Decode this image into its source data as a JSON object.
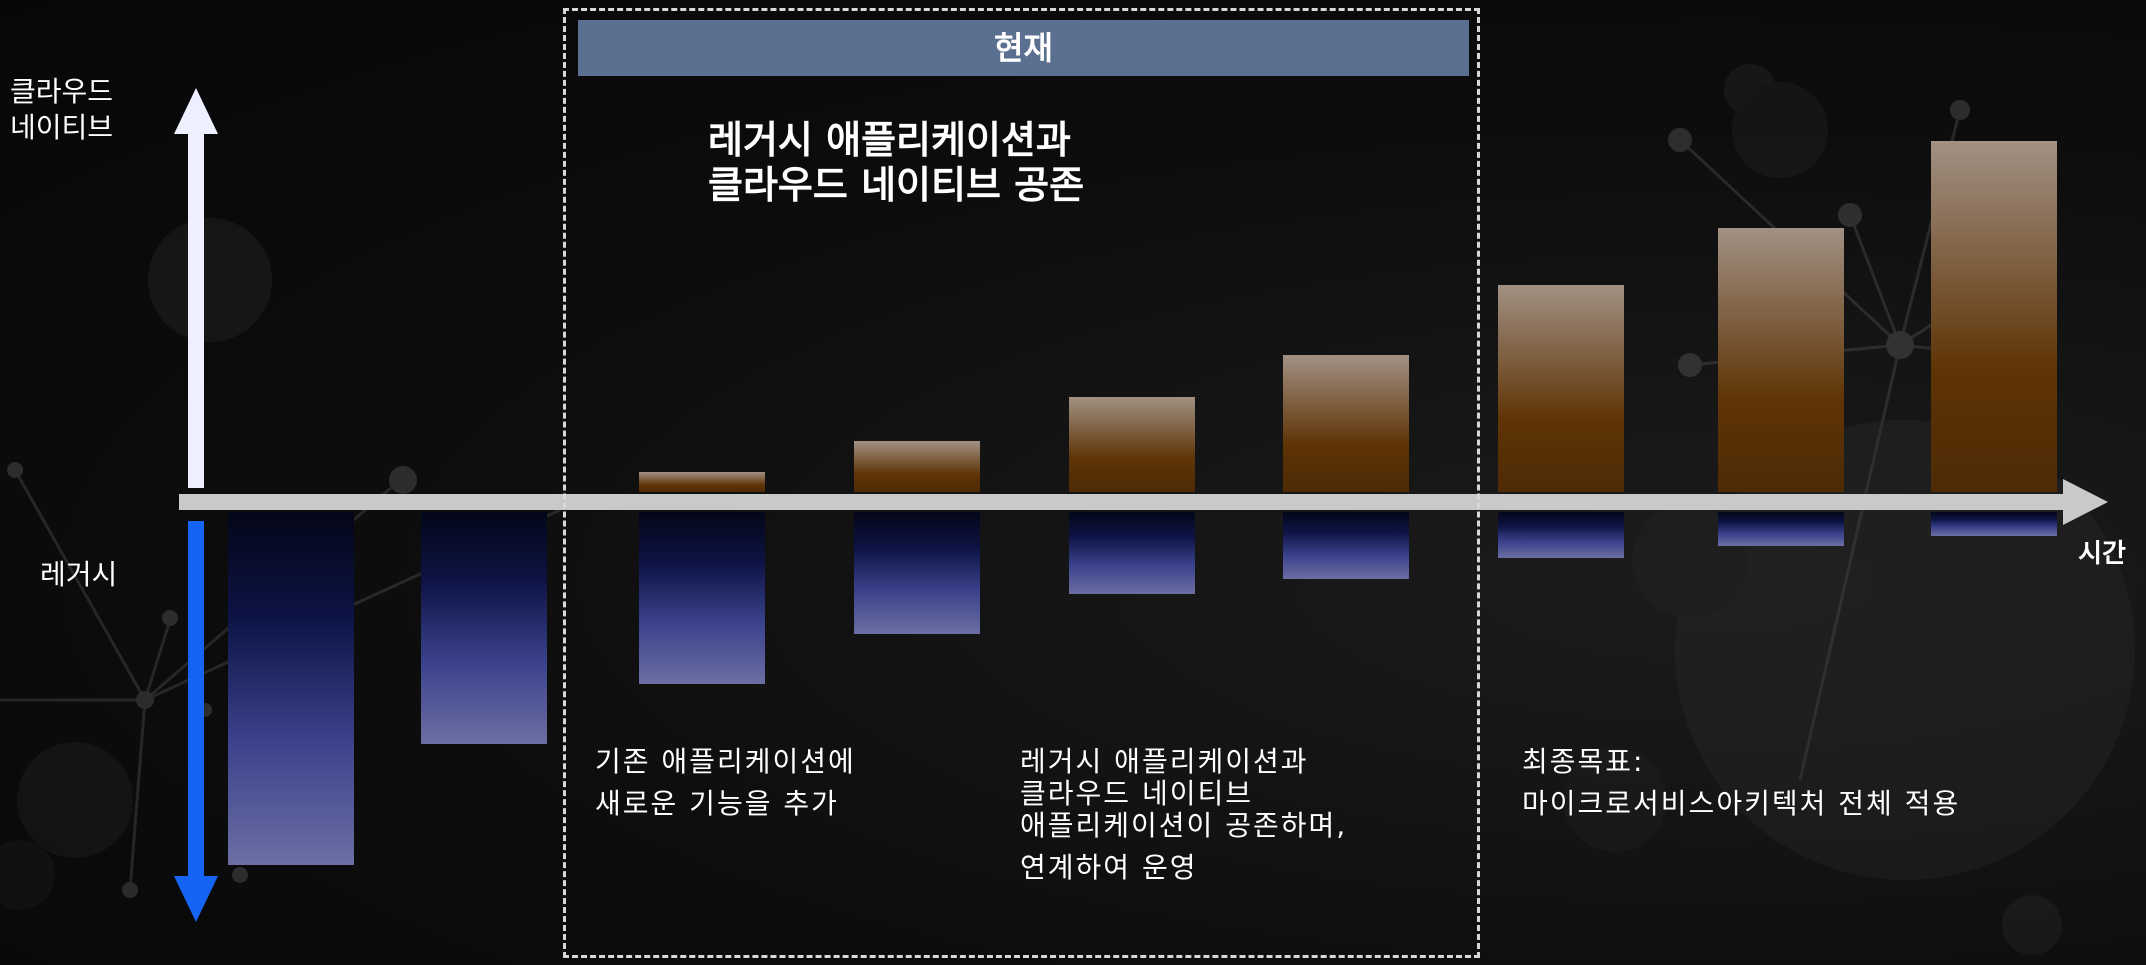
{
  "axis": {
    "up_label_line1": "클라우드",
    "up_label_line2": "네이티브",
    "down_label": "레거시",
    "time_label": "시간",
    "up_arrow_color": "#eef0ff",
    "down_arrow_color": "#1565f5",
    "time_axis_color": "#c9c9c9"
  },
  "current_section": {
    "header": "현재",
    "headline_line1": "레거시 애플리케이션과",
    "headline_line2": "클라우드 네이티브 공존"
  },
  "descriptions": {
    "first_line1": "기존 애플리케이션에",
    "first_line2": "새로운 기능을 추가",
    "second_line1": "레거시 애플리케이션과",
    "second_line2": "클라우드 네이티브",
    "second_line3": "애플리케이션이 공존하며,",
    "second_line4": "연계하여 운영",
    "third_line1": "최종목표:",
    "third_line2": "마이크로서비스아키텍처 전체 적용"
  },
  "chart_data": {
    "type": "bar",
    "stages": 9,
    "series": [
      {
        "role": "cloud-native (above axis)",
        "color": "#6a3a08",
        "values": [
          0,
          0,
          20,
          51,
          95,
          137,
          207,
          264,
          351
        ]
      },
      {
        "role": "legacy (below axis)",
        "color": "#4a4f98",
        "values": [
          353,
          232,
          172,
          122,
          82,
          67,
          46,
          34,
          24
        ]
      }
    ]
  }
}
